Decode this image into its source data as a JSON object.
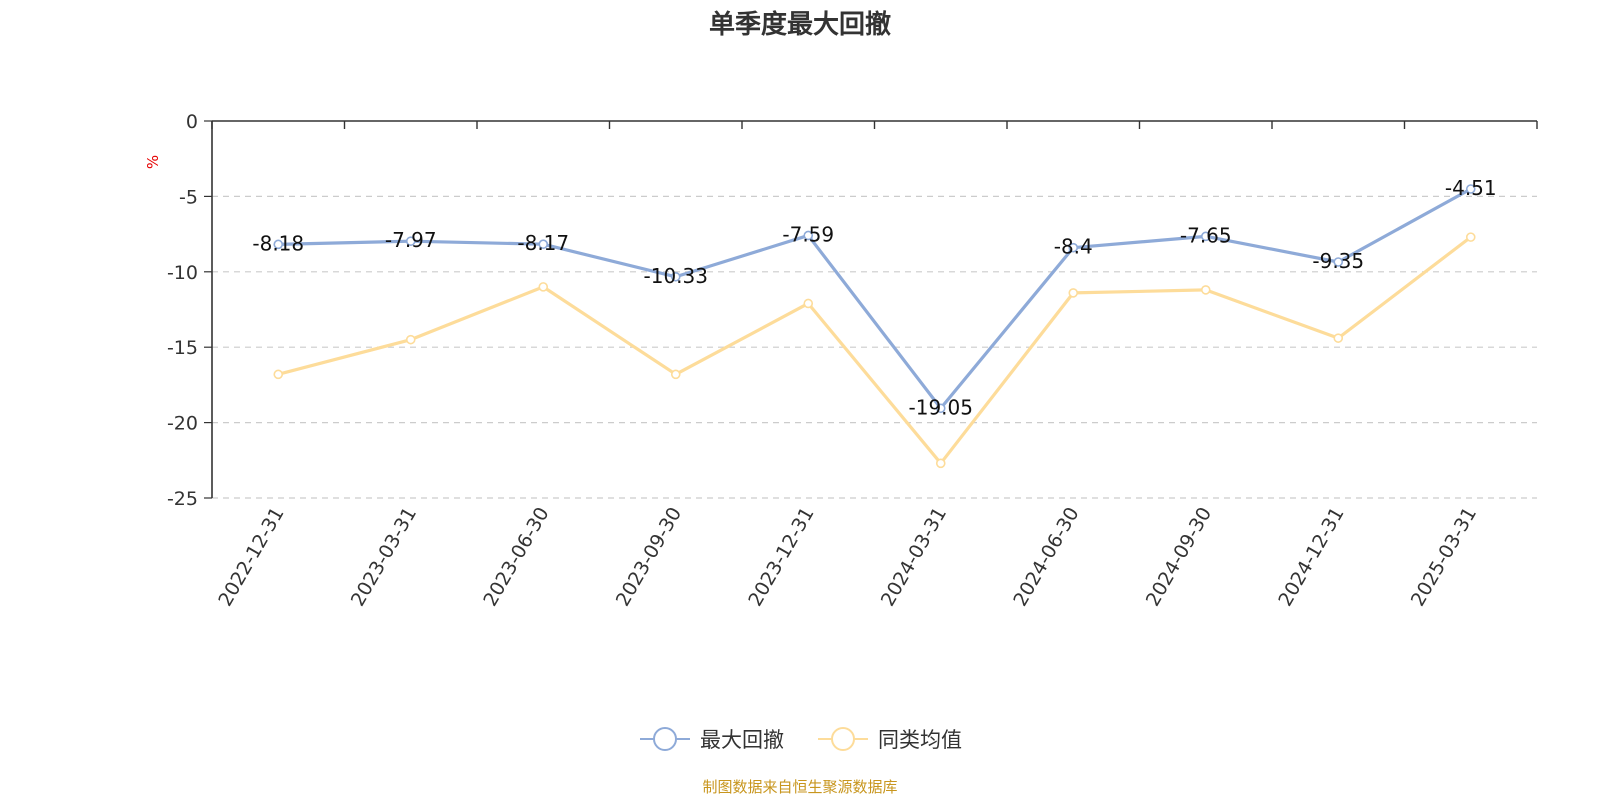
{
  "title": "单季度最大回撤",
  "source_note": "制图数据来自恒生聚源数据库",
  "chart_data": {
    "type": "line",
    "title": "单季度最大回撤",
    "ylabel": "%",
    "ylim": [
      -25,
      0
    ],
    "yticks": [
      0,
      -5,
      -10,
      -15,
      -20,
      -25
    ],
    "grid": true,
    "legend_position": "bottom",
    "categories": [
      "2022-12-31",
      "2023-03-31",
      "2023-06-30",
      "2023-09-30",
      "2023-12-31",
      "2024-03-31",
      "2024-06-30",
      "2024-09-30",
      "2024-12-31",
      "2025-03-31"
    ],
    "series": [
      {
        "name": "最大回撤",
        "color": "#8eaad8",
        "show_labels": true,
        "values": [
          -8.18,
          -7.97,
          -8.17,
          -10.33,
          -7.59,
          -19.05,
          -8.4,
          -7.65,
          -9.35,
          -4.51
        ]
      },
      {
        "name": "同类均值",
        "color": "#fddc9a",
        "show_labels": false,
        "values": [
          -16.8,
          -14.5,
          -11.0,
          -16.8,
          -12.1,
          -22.7,
          -11.4,
          -11.2,
          -14.4,
          -7.7
        ]
      }
    ]
  }
}
